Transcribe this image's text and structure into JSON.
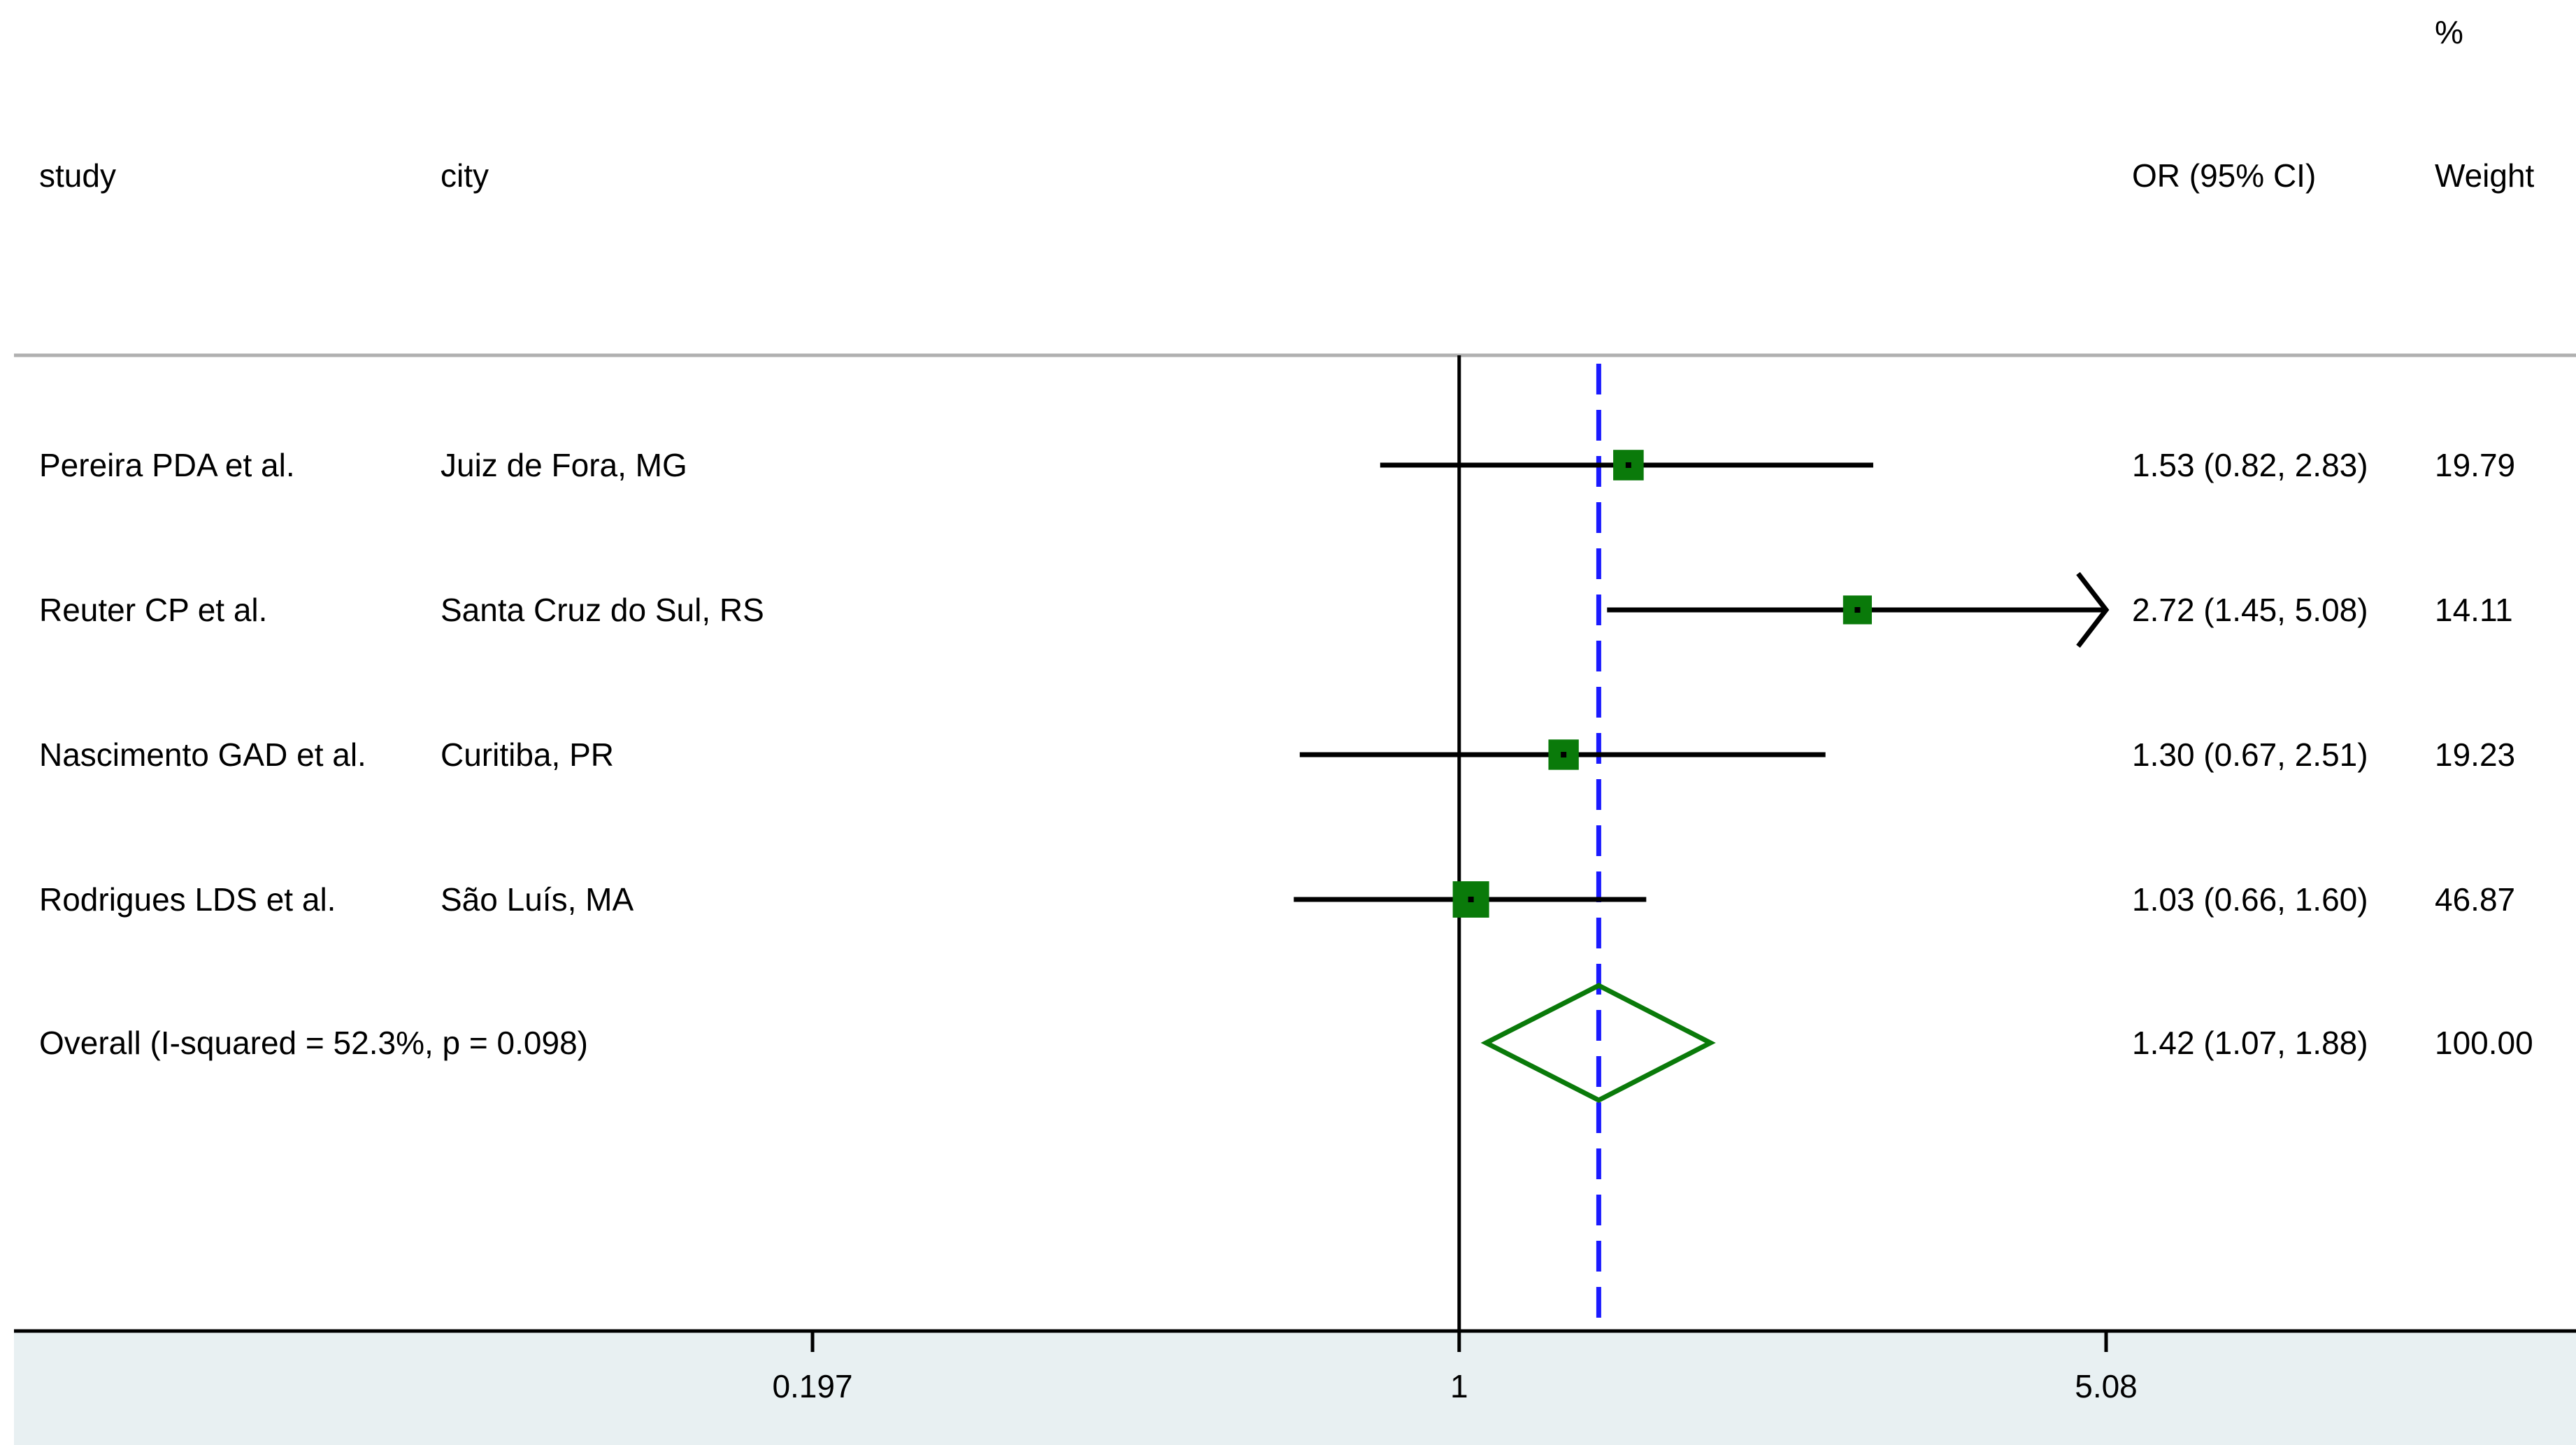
{
  "chart_data": {
    "type": "forest",
    "columns": {
      "study": "study",
      "city": "city",
      "effect": "OR (95% CI)",
      "weight_top": "%",
      "weight": "Weight"
    },
    "x_scale": "log",
    "x_ticks": [
      {
        "value": 0.197,
        "label": "0.197"
      },
      {
        "value": 1,
        "label": "1"
      },
      {
        "value": 5.08,
        "label": "5.08"
      }
    ],
    "xlim": [
      0.197,
      5.08
    ],
    "null_line": 1,
    "pooled_line": 1.42,
    "colors": {
      "marker": "#0a7a0a",
      "pooled_line": "#1a1aff",
      "ci": "#000000",
      "axis_band": "#e8f0f2"
    },
    "studies": [
      {
        "study": "Pereira PDA et al.",
        "city": "Juiz de Fora, MG",
        "or": 1.53,
        "lower": 0.82,
        "upper": 2.83,
        "or_text": "1.53 (0.82, 2.83)",
        "weight": 19.79,
        "weight_text": "19.79"
      },
      {
        "study": "Reuter CP et al.",
        "city": "Santa Cruz do Sul, RS",
        "or": 2.72,
        "lower": 1.45,
        "upper": 5.08,
        "or_text": "2.72 (1.45, 5.08)",
        "weight": 14.11,
        "weight_text": "14.11"
      },
      {
        "study": "Nascimento GAD et al.",
        "city": "Curitiba, PR",
        "or": 1.3,
        "lower": 0.67,
        "upper": 2.51,
        "or_text": "1.30 (0.67, 2.51)",
        "weight": 19.23,
        "weight_text": "19.23"
      },
      {
        "study": "Rodrigues LDS et al.",
        "city": "São Luís, MA",
        "or": 1.03,
        "lower": 0.66,
        "upper": 1.6,
        "or_text": "1.03 (0.66, 1.60)",
        "weight": 46.87,
        "weight_text": "46.87"
      }
    ],
    "overall": {
      "label": "Overall  (I-squared = 52.3%, p = 0.098)",
      "or": 1.42,
      "lower": 1.07,
      "upper": 1.88,
      "or_text": "1.42 (1.07, 1.88)",
      "weight_text": "100.00"
    }
  }
}
